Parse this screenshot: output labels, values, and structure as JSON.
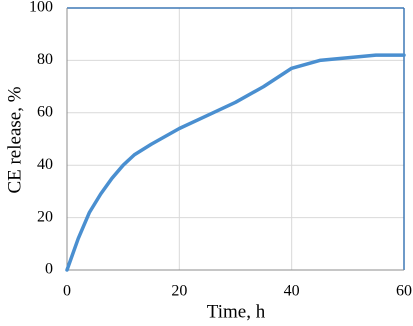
{
  "chart_data": {
    "type": "line",
    "xlabel": "Time, h",
    "ylabel": "CE release, %",
    "x": [
      0,
      2,
      4,
      6,
      8,
      10,
      12,
      15,
      20,
      25,
      30,
      35,
      40,
      45,
      50,
      55,
      60
    ],
    "series": [
      {
        "name": "CE release",
        "color": "#4a8fd0",
        "values": [
          0,
          12,
          22,
          29,
          35,
          40,
          44,
          48,
          54,
          59,
          64,
          70,
          77,
          80,
          81,
          82,
          82
        ]
      }
    ],
    "xlim": [
      0,
      60
    ],
    "xticks": [
      0,
      20,
      40,
      60
    ],
    "ylim": [
      0,
      100
    ],
    "yticks": [
      0,
      20,
      40,
      60,
      80,
      100
    ],
    "grid": true
  }
}
